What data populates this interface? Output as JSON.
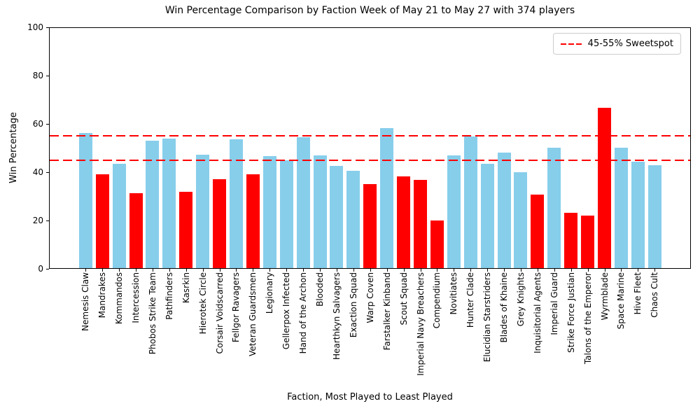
{
  "chart": {
    "title": "Win Percentage Comparison by Faction Week of May 21 to May 27 with 374 players",
    "ylabel": "Win Percentage",
    "xlabel": "Faction, Most Played to Least Played",
    "legend_label": "45-55% Sweetspot"
  },
  "chart_data": {
    "type": "bar",
    "title": "Win Percentage Comparison by Faction Week of May 21 to May 27 with 374 players",
    "xlabel": "Faction, Most Played to Least Played",
    "ylabel": "Win Percentage",
    "ylim": [
      0,
      100
    ],
    "yticks": [
      0,
      20,
      40,
      60,
      80,
      100
    ],
    "grid": false,
    "legend": {
      "label": "45-55% Sweetspot",
      "position": "upper right"
    },
    "guidelines": {
      "values": [
        45,
        55
      ],
      "style": "dashed",
      "color": "#FF0000"
    },
    "colors": {
      "in_range_bar": "#87CEEB",
      "out_of_range_bar": "#FF0000"
    },
    "categories": [
      "Nemesis Claw",
      "Mandrakes",
      "Kommandos",
      "Intercession",
      "Phobos Strike Team",
      "Pathfinders",
      "Kasrkin",
      "Hierotek Circle",
      "Corsair Voidscarred",
      "Fellgor Ravagers",
      "Veteran Guardsmen",
      "Legionary",
      "Gellerpox Infected",
      "Hand of the Archon",
      "Blooded",
      "Hearthkyn Salvagers",
      "Exaction Squad",
      "Warp Coven",
      "Farstalker Kinband",
      "Scout Squad",
      "Imperial Navy Breachers",
      "Compendium",
      "Novitiates",
      "Hunter Clade",
      "Elucidian Starstriders",
      "Blades of Khaine",
      "Grey Knights",
      "Inquisitorial Agents",
      "Imperial Guard",
      "Strike Force Justian",
      "Talons of the Emperor",
      "Wyrmblade",
      "Space Marine",
      "Hive Fleet",
      "Chaos Cult"
    ],
    "values": [
      56.3,
      39.1,
      43.4,
      31.4,
      53.1,
      53.8,
      32.0,
      47.3,
      37.1,
      53.5,
      39.0,
      46.6,
      45.0,
      54.5,
      47.0,
      42.6,
      40.5,
      35.2,
      58.4,
      38.2,
      36.8,
      20.0,
      47.0,
      54.8,
      43.5,
      48.0,
      40.0,
      30.8,
      50.2,
      23.2,
      22.1,
      66.8,
      50.1,
      44.4,
      42.9
    ],
    "bar_colors": [
      "#87CEEB",
      "#FF0000",
      "#87CEEB",
      "#FF0000",
      "#87CEEB",
      "#87CEEB",
      "#FF0000",
      "#87CEEB",
      "#FF0000",
      "#87CEEB",
      "#FF0000",
      "#87CEEB",
      "#87CEEB",
      "#87CEEB",
      "#87CEEB",
      "#87CEEB",
      "#87CEEB",
      "#FF0000",
      "#87CEEB",
      "#FF0000",
      "#FF0000",
      "#FF0000",
      "#87CEEB",
      "#87CEEB",
      "#87CEEB",
      "#87CEEB",
      "#87CEEB",
      "#FF0000",
      "#87CEEB",
      "#FF0000",
      "#FF0000",
      "#FF0000",
      "#87CEEB",
      "#87CEEB",
      "#87CEEB"
    ]
  }
}
